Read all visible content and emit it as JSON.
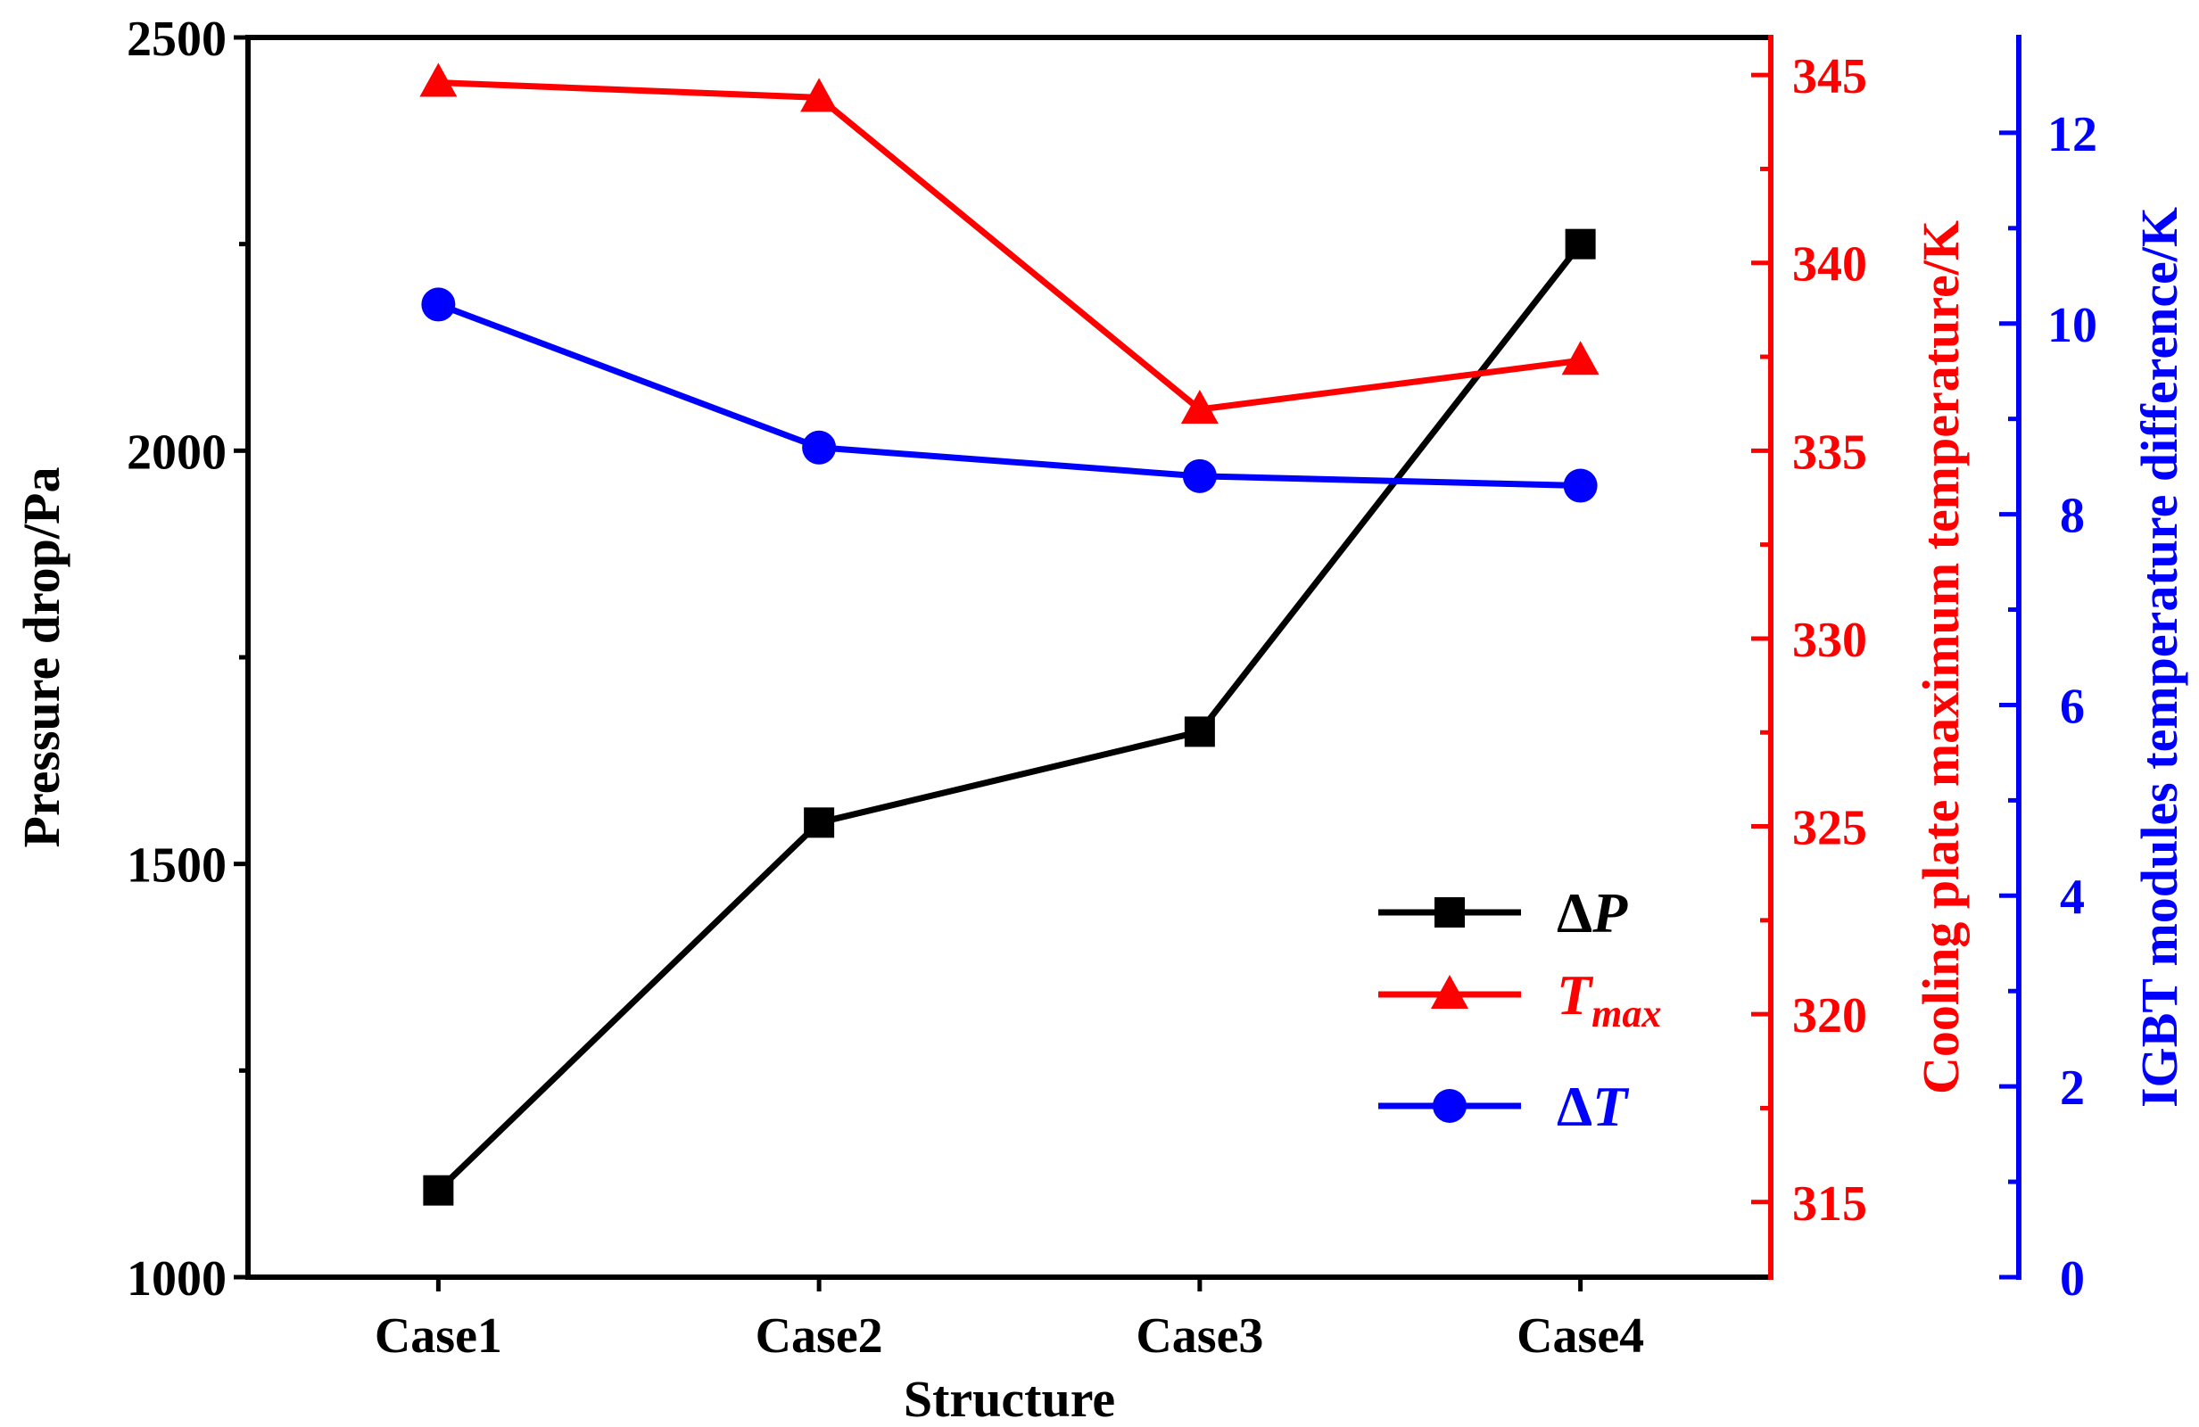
{
  "chart_data": {
    "type": "line",
    "categories": [
      "Case1",
      "Case2",
      "Case3",
      "Case4"
    ],
    "xlabel": "Structure",
    "axes": {
      "left": {
        "label": "Pressure drop/Pa",
        "color": "#000000",
        "ylim": [
          1000,
          2500
        ],
        "ticks": [
          1000,
          1500,
          2000,
          2500
        ],
        "minor_ticks": [
          1250,
          1750,
          2250
        ]
      },
      "right1": {
        "label": "Cooling plate maximum temperature/K",
        "color": "#ff0000",
        "ylim": [
          313,
          346
        ],
        "ticks": [
          315,
          320,
          325,
          330,
          335,
          340,
          345
        ],
        "minor_ticks": [
          317.5,
          322.5,
          327.5,
          332.5,
          337.5,
          342.5
        ]
      },
      "right2": {
        "label": "IGBT modules temperature difference/K",
        "color": "#0000ff",
        "ylim": [
          0,
          13
        ],
        "ticks": [
          0,
          2,
          4,
          6,
          8,
          10,
          12
        ],
        "minor_ticks": [
          1,
          3,
          5,
          7,
          9,
          11
        ]
      }
    },
    "series": [
      {
        "name": "ΔP",
        "legend_main": "Δ",
        "legend_ital": "P",
        "legend_sub": "",
        "axis": "left",
        "color": "#000000",
        "marker": "square",
        "values": [
          1105,
          1550,
          1660,
          2250
        ]
      },
      {
        "name": "Tmax",
        "legend_main": "",
        "legend_ital": "T",
        "legend_sub": "max",
        "axis": "right1",
        "color": "#ff0000",
        "marker": "triangle",
        "values": [
          344.8,
          344.4,
          336.1,
          337.4
        ]
      },
      {
        "name": "ΔT",
        "legend_main": "Δ",
        "legend_ital": "T",
        "legend_sub": "",
        "axis": "right2",
        "color": "#0000ff",
        "marker": "circle",
        "values": [
          10.2,
          8.7,
          8.4,
          8.3
        ]
      }
    ],
    "legend_position": "bottom-right inside plot",
    "grid": false
  }
}
